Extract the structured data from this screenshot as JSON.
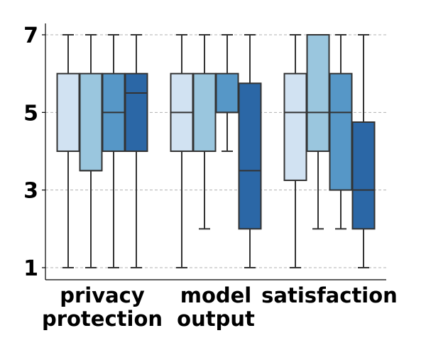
{
  "chart_data": {
    "type": "box",
    "title": "",
    "xlabel": "",
    "ylabel": "",
    "ylim": [
      0.7,
      7.3
    ],
    "yticks": [
      1,
      3,
      5,
      7
    ],
    "grid": true,
    "categories": [
      {
        "label_lines": [
          "privacy",
          "protection"
        ]
      },
      {
        "label_lines": [
          "model",
          "output"
        ]
      },
      {
        "label_lines": [
          "satisfaction"
        ]
      }
    ],
    "series_colors": [
      "#d1e2f2",
      "#9ac6de",
      "#5697c7",
      "#2b67a6"
    ],
    "boxes": [
      [
        {
          "min": 1,
          "q1": 4,
          "median": 4,
          "q3": 6,
          "max": 7
        },
        {
          "min": 1,
          "q1": 3.5,
          "median": 3.5,
          "q3": 6,
          "max": 7
        },
        {
          "min": 1,
          "q1": 4,
          "median": 5,
          "q3": 6,
          "max": 7
        },
        {
          "min": 1,
          "q1": 4,
          "median": 5.5,
          "q3": 6,
          "max": 7
        }
      ],
      [
        {
          "min": 1,
          "q1": 4,
          "median": 5,
          "q3": 6,
          "max": 7
        },
        {
          "min": 2,
          "q1": 4,
          "median": 4,
          "q3": 6,
          "max": 7
        },
        {
          "min": 4,
          "q1": 5,
          "median": 5,
          "q3": 6,
          "max": 7
        },
        {
          "min": 1,
          "q1": 2,
          "median": 3.5,
          "q3": 5.75,
          "max": 7
        }
      ],
      [
        {
          "min": 1,
          "q1": 3.25,
          "median": 5,
          "q3": 6,
          "max": 7
        },
        {
          "min": 2,
          "q1": 4,
          "median": 5,
          "q3": 7,
          "max": 7
        },
        {
          "min": 2,
          "q1": 3,
          "median": 5,
          "q3": 6,
          "max": 7
        },
        {
          "min": 1,
          "q1": 2,
          "median": 3,
          "q3": 4.75,
          "max": 7
        }
      ]
    ]
  }
}
